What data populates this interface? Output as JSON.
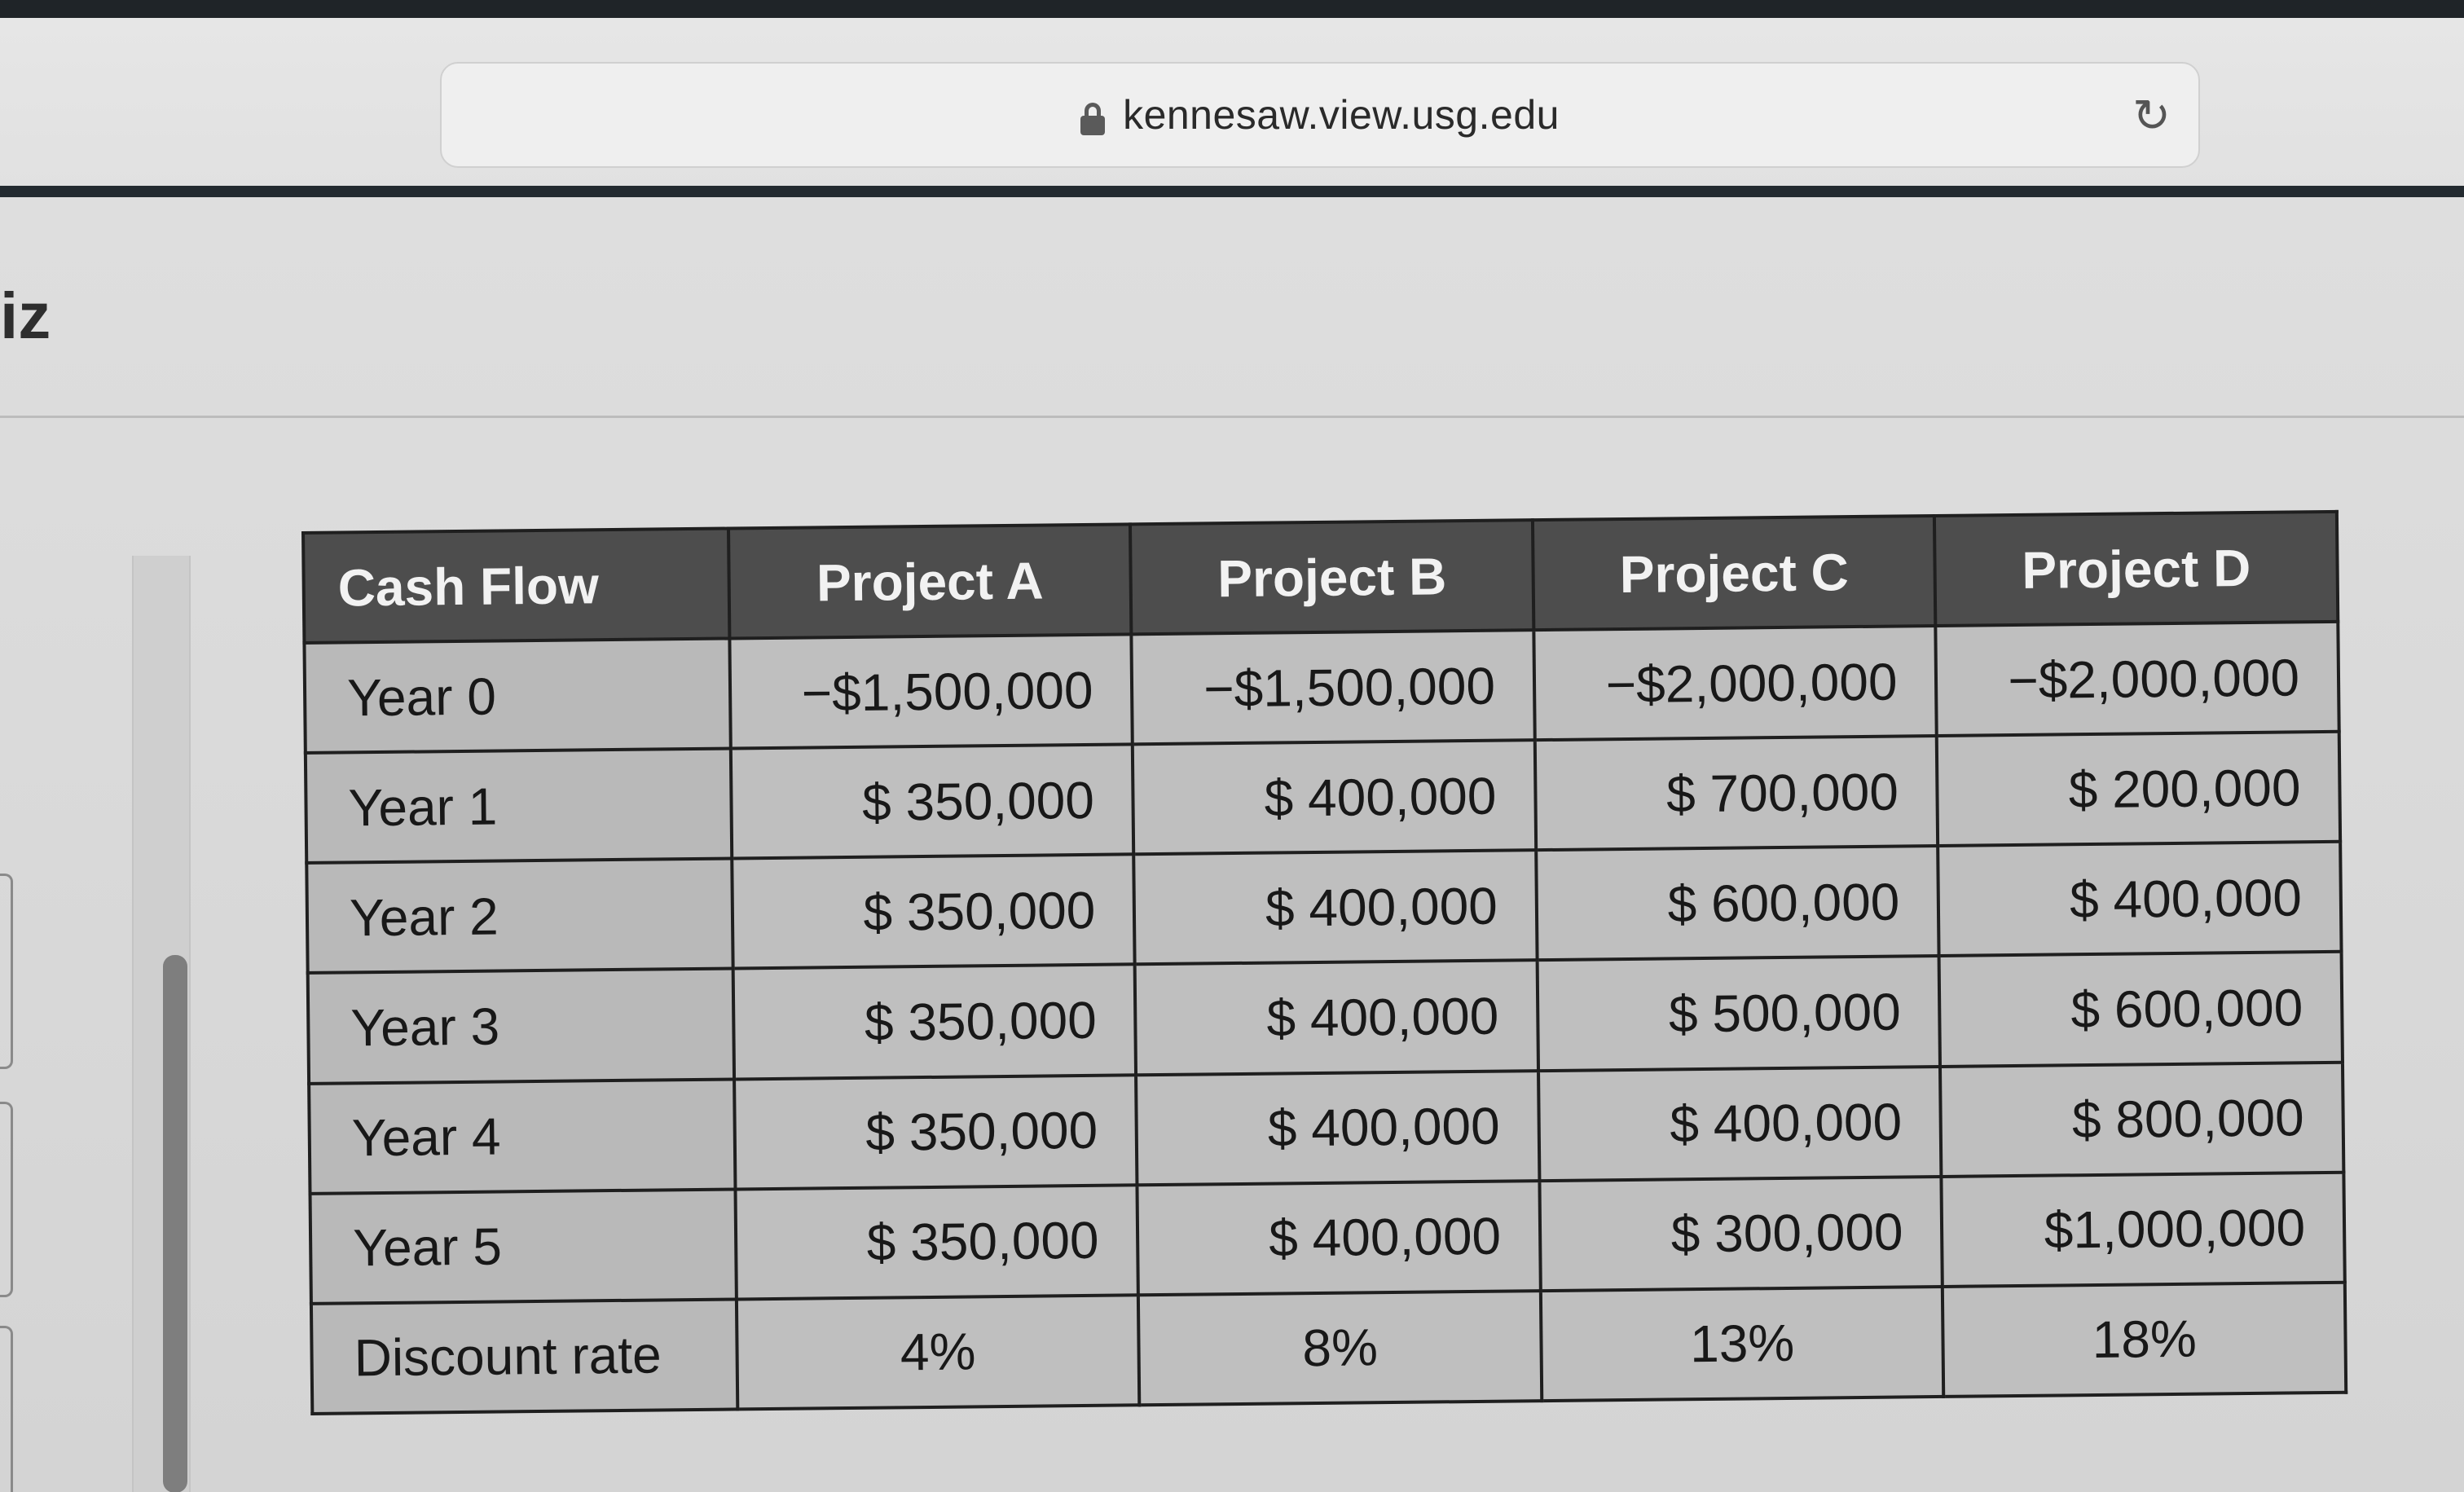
{
  "browser": {
    "url": "kennesaw.view.usg.edu"
  },
  "page": {
    "title_fragment": "iz"
  },
  "table": {
    "headers": [
      "Cash Flow",
      "Project A",
      "Project B",
      "Project C",
      "Project D"
    ],
    "rows": [
      {
        "label": "Year 0",
        "values": [
          "−$1,500,000",
          "−$1,500,000",
          "−$2,000,000",
          "−$2,000,000"
        ]
      },
      {
        "label": "Year 1",
        "values": [
          "$ 350,000",
          "$ 400,000",
          "$ 700,000",
          "$ 200,000"
        ]
      },
      {
        "label": "Year 2",
        "values": [
          "$ 350,000",
          "$ 400,000",
          "$ 600,000",
          "$ 400,000"
        ]
      },
      {
        "label": "Year 3",
        "values": [
          "$ 350,000",
          "$ 400,000",
          "$ 500,000",
          "$ 600,000"
        ]
      },
      {
        "label": "Year 4",
        "values": [
          "$ 350,000",
          "$ 400,000",
          "$ 400,000",
          "$ 800,000"
        ]
      },
      {
        "label": "Year 5",
        "values": [
          "$ 350,000",
          "$ 400,000",
          "$ 300,000",
          "$1,000,000"
        ]
      },
      {
        "label": "Discount rate",
        "values": [
          "4%",
          "8%",
          "13%",
          "18%"
        ]
      }
    ]
  },
  "colors": {
    "header_bg": "#4d4d4d",
    "cell_bg": "#bfbfbf",
    "border": "#1f1f1f"
  }
}
